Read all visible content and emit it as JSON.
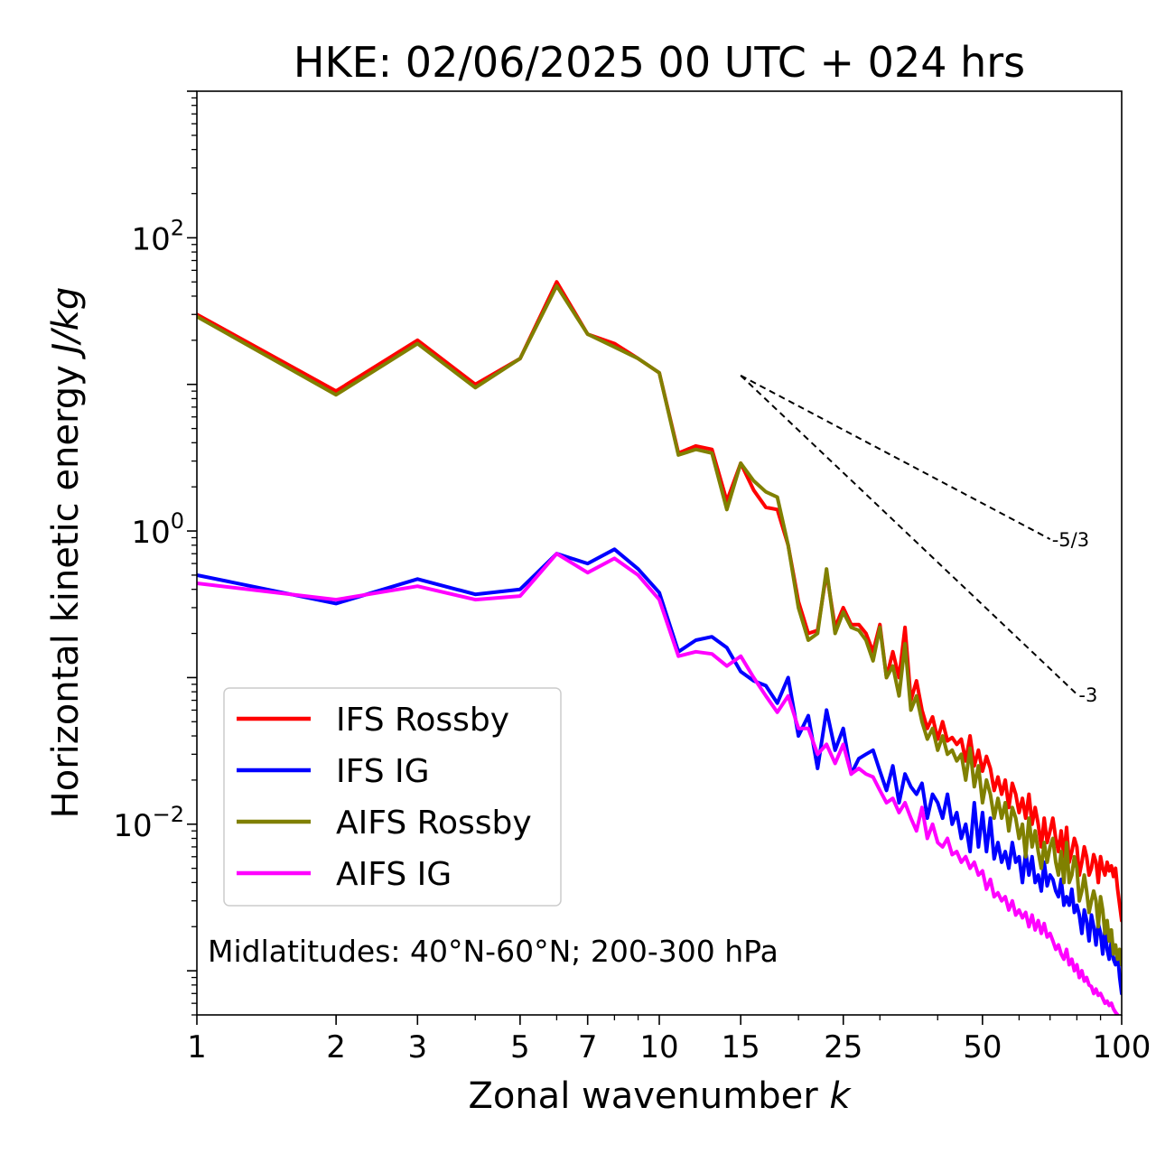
{
  "chart_data": {
    "type": "line",
    "title": "HKE: 02/06/2025 00 UTC + 024 hrs",
    "xlabel": "Zonal wavenumber",
    "xlabel_var": "k",
    "ylabel": "Horizontal kinetic energy",
    "ylabel_units": "J/kg",
    "xscale": "log",
    "yscale": "log",
    "xlim": [
      1,
      100
    ],
    "ylim": [
      0.0005,
      1000
    ],
    "x_ticks": [
      1,
      2,
      3,
      5,
      7,
      10,
      15,
      25,
      50,
      100
    ],
    "x_tick_labels": [
      "1",
      "2",
      "3",
      "5",
      "7",
      "10",
      "15",
      "25",
      "50",
      "100"
    ],
    "y_ticks": [
      0.01,
      1,
      100
    ],
    "y_tick_labels": [
      {
        "base": "10",
        "exp": "−2"
      },
      {
        "base": "10",
        "exp": "0"
      },
      {
        "base": "10",
        "exp": "2"
      }
    ],
    "grid": false,
    "legend_placement": "lower-left",
    "annotation": "Midlatitudes: 40°N-60°N; 200-300 hPa",
    "reference_lines": [
      {
        "label": "-5/3",
        "slope": -1.6667,
        "x": [
          15,
          70
        ],
        "y": [
          11.5,
          0.88
        ]
      },
      {
        "label": "-3",
        "slope": -3,
        "x": [
          15,
          80
        ],
        "y": [
          11.5,
          0.077
        ]
      }
    ],
    "series": [
      {
        "name": "IFS Rossby",
        "color": "#ff0000",
        "x": [
          1,
          2,
          3,
          4,
          5,
          6,
          7,
          8,
          9,
          10,
          11,
          12,
          13,
          14,
          15,
          16,
          17,
          18,
          19,
          20,
          21,
          22,
          23,
          24,
          25,
          26,
          27,
          28,
          29,
          30,
          31,
          32,
          33,
          34,
          35,
          36,
          37,
          38,
          39,
          40,
          41,
          42,
          43,
          44,
          45,
          46,
          47,
          48,
          49,
          50,
          51,
          52,
          53,
          54,
          55,
          56,
          57,
          58,
          59,
          60,
          61,
          62,
          63,
          64,
          65,
          66,
          67,
          68,
          69,
          70,
          71,
          72,
          73,
          74,
          75,
          76,
          77,
          78,
          79,
          80,
          81,
          82,
          83,
          84,
          85,
          86,
          87,
          88,
          89,
          90,
          91,
          92,
          93,
          94,
          95,
          96,
          97,
          98,
          99,
          100
        ],
        "y": [
          30,
          9,
          20,
          10,
          15,
          50,
          22,
          19,
          15,
          12,
          3.4,
          3.8,
          3.6,
          1.6,
          2.9,
          1.9,
          1.45,
          1.4,
          0.8,
          0.33,
          0.2,
          0.21,
          0.52,
          0.22,
          0.3,
          0.23,
          0.23,
          0.2,
          0.15,
          0.23,
          0.1,
          0.15,
          0.1,
          0.22,
          0.07,
          0.095,
          0.06,
          0.045,
          0.054,
          0.038,
          0.05,
          0.037,
          0.039,
          0.035,
          0.038,
          0.027,
          0.04,
          0.025,
          0.032,
          0.023,
          0.029,
          0.024,
          0.017,
          0.021,
          0.016,
          0.02,
          0.013,
          0.019,
          0.016,
          0.012,
          0.015,
          0.011,
          0.016,
          0.01,
          0.013,
          0.01,
          0.007,
          0.011,
          0.0075,
          0.009,
          0.011,
          0.008,
          0.0065,
          0.009,
          0.006,
          0.0095,
          0.0055,
          0.0065,
          0.008,
          0.007,
          0.0045,
          0.0055,
          0.007,
          0.006,
          0.0045,
          0.005,
          0.0062,
          0.0055,
          0.004,
          0.006,
          0.005,
          0.0045,
          0.0055,
          0.0048,
          0.0052,
          0.0044,
          0.005,
          0.0036,
          0.0028,
          0.0022
        ]
      },
      {
        "name": "IFS IG",
        "color": "#0000ff",
        "x": [
          1,
          2,
          3,
          4,
          5,
          6,
          7,
          8,
          9,
          10,
          11,
          12,
          13,
          14,
          15,
          16,
          17,
          18,
          19,
          20,
          21,
          22,
          23,
          24,
          25,
          26,
          27,
          28,
          29,
          30,
          31,
          32,
          33,
          34,
          35,
          36,
          37,
          38,
          39,
          40,
          41,
          42,
          43,
          44,
          45,
          46,
          47,
          48,
          49,
          50,
          51,
          52,
          53,
          54,
          55,
          56,
          57,
          58,
          59,
          60,
          61,
          62,
          63,
          64,
          65,
          66,
          67,
          68,
          69,
          70,
          71,
          72,
          73,
          74,
          75,
          76,
          77,
          78,
          79,
          80,
          81,
          82,
          83,
          84,
          85,
          86,
          87,
          88,
          89,
          90,
          91,
          92,
          93,
          94,
          95,
          96,
          97,
          98,
          99,
          100
        ],
        "y": [
          0.5,
          0.32,
          0.47,
          0.37,
          0.4,
          0.7,
          0.6,
          0.75,
          0.55,
          0.38,
          0.15,
          0.18,
          0.19,
          0.16,
          0.11,
          0.095,
          0.088,
          0.067,
          0.1,
          0.04,
          0.055,
          0.024,
          0.06,
          0.032,
          0.045,
          0.022,
          0.028,
          0.03,
          0.032,
          0.023,
          0.017,
          0.025,
          0.014,
          0.022,
          0.018,
          0.016,
          0.019,
          0.011,
          0.016,
          0.014,
          0.011,
          0.016,
          0.01,
          0.012,
          0.008,
          0.01,
          0.0065,
          0.014,
          0.007,
          0.012,
          0.0065,
          0.011,
          0.0058,
          0.0075,
          0.0055,
          0.0065,
          0.005,
          0.0075,
          0.0055,
          0.006,
          0.004,
          0.0065,
          0.0045,
          0.006,
          0.004,
          0.0045,
          0.0035,
          0.0055,
          0.0038,
          0.0045,
          0.0042,
          0.0035,
          0.0032,
          0.0042,
          0.0028,
          0.0032,
          0.0028,
          0.0036,
          0.0025,
          0.0028,
          0.0024,
          0.0018,
          0.0026,
          0.0022,
          0.0016,
          0.0024,
          0.002,
          0.0015,
          0.0021,
          0.0018,
          0.0013,
          0.0019,
          0.0014,
          0.0012,
          0.0016,
          0.0012,
          0.0011,
          0.0013,
          0.0009,
          0.0007
        ]
      },
      {
        "name": "AIFS Rossby",
        "color": "#808000",
        "x": [
          1,
          2,
          3,
          4,
          5,
          6,
          7,
          8,
          9,
          10,
          11,
          12,
          13,
          14,
          15,
          16,
          17,
          18,
          19,
          20,
          21,
          22,
          23,
          24,
          25,
          26,
          27,
          28,
          29,
          30,
          31,
          32,
          33,
          34,
          35,
          36,
          37,
          38,
          39,
          40,
          41,
          42,
          43,
          44,
          45,
          46,
          47,
          48,
          49,
          50,
          51,
          52,
          53,
          54,
          55,
          56,
          57,
          58,
          59,
          60,
          61,
          62,
          63,
          64,
          65,
          66,
          67,
          68,
          69,
          70,
          71,
          72,
          73,
          74,
          75,
          76,
          77,
          78,
          79,
          80,
          81,
          82,
          83,
          84,
          85,
          86,
          87,
          88,
          89,
          90,
          91,
          92,
          93,
          94,
          95,
          96,
          97,
          98,
          99,
          100
        ],
        "y": [
          29,
          8.5,
          19,
          9.5,
          15,
          47,
          22,
          18,
          15,
          12,
          3.3,
          3.6,
          3.4,
          1.4,
          2.9,
          2.2,
          1.85,
          1.7,
          0.8,
          0.3,
          0.18,
          0.2,
          0.55,
          0.2,
          0.28,
          0.22,
          0.21,
          0.18,
          0.13,
          0.22,
          0.1,
          0.12,
          0.075,
          0.17,
          0.06,
          0.075,
          0.05,
          0.038,
          0.045,
          0.032,
          0.04,
          0.03,
          0.032,
          0.027,
          0.03,
          0.02,
          0.033,
          0.018,
          0.025,
          0.014,
          0.02,
          0.016,
          0.011,
          0.015,
          0.011,
          0.014,
          0.009,
          0.013,
          0.011,
          0.008,
          0.01,
          0.006,
          0.011,
          0.007,
          0.009,
          0.0065,
          0.005,
          0.0075,
          0.0055,
          0.007,
          0.008,
          0.0055,
          0.0045,
          0.0065,
          0.004,
          0.0075,
          0.004,
          0.0045,
          0.006,
          0.005,
          0.003,
          0.0035,
          0.0045,
          0.0035,
          0.0025,
          0.003,
          0.0035,
          0.003,
          0.002,
          0.0032,
          0.0026,
          0.0018,
          0.0022,
          0.0016,
          0.0019,
          0.0013,
          0.0015,
          0.0012,
          0.0014,
          0.0011
        ]
      },
      {
        "name": "AIFS IG",
        "color": "#ff00ff",
        "x": [
          1,
          2,
          3,
          4,
          5,
          6,
          7,
          8,
          9,
          10,
          11,
          12,
          13,
          14,
          15,
          16,
          17,
          18,
          19,
          20,
          21,
          22,
          23,
          24,
          25,
          26,
          27,
          28,
          29,
          30,
          31,
          32,
          33,
          34,
          35,
          36,
          37,
          38,
          39,
          40,
          41,
          42,
          43,
          44,
          45,
          46,
          47,
          48,
          49,
          50,
          51,
          52,
          53,
          54,
          55,
          56,
          57,
          58,
          59,
          60,
          61,
          62,
          63,
          64,
          65,
          66,
          67,
          68,
          69,
          70,
          71,
          72,
          73,
          74,
          75,
          76,
          77,
          78,
          79,
          80,
          81,
          82,
          83,
          84,
          85,
          86,
          87,
          88,
          89,
          90,
          91,
          92,
          93,
          94,
          95,
          96,
          97,
          98,
          99,
          100
        ],
        "y": [
          0.44,
          0.34,
          0.42,
          0.34,
          0.36,
          0.7,
          0.52,
          0.65,
          0.5,
          0.34,
          0.14,
          0.15,
          0.145,
          0.12,
          0.14,
          0.1,
          0.075,
          0.058,
          0.075,
          0.045,
          0.045,
          0.03,
          0.035,
          0.026,
          0.035,
          0.022,
          0.024,
          0.022,
          0.021,
          0.017,
          0.014,
          0.015,
          0.012,
          0.014,
          0.011,
          0.009,
          0.013,
          0.008,
          0.01,
          0.0075,
          0.007,
          0.008,
          0.0062,
          0.0065,
          0.0055,
          0.006,
          0.005,
          0.0055,
          0.0045,
          0.0048,
          0.0036,
          0.0042,
          0.0032,
          0.0034,
          0.003,
          0.0032,
          0.0026,
          0.003,
          0.0024,
          0.0026,
          0.0023,
          0.0025,
          0.002,
          0.0024,
          0.0019,
          0.0022,
          0.0018,
          0.0021,
          0.0017,
          0.0018,
          0.0016,
          0.0014,
          0.0015,
          0.0013,
          0.0012,
          0.0014,
          0.0011,
          0.0012,
          0.001,
          0.0011,
          0.0009,
          0.001,
          0.00085,
          0.0009,
          0.0008,
          0.00078,
          0.0007,
          0.00075,
          0.00068,
          0.0007,
          0.00065,
          0.0006,
          0.00062,
          0.00058,
          0.0006,
          0.00055,
          0.00052,
          0.0005,
          0.00045,
          0.0004
        ]
      }
    ]
  }
}
